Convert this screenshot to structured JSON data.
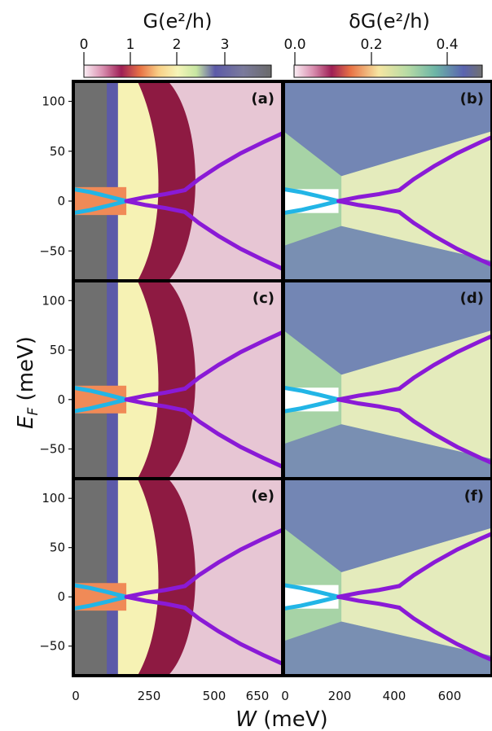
{
  "chart_data": {
    "type": "heatmap",
    "colorbars": [
      {
        "title": "G(e²/h)",
        "ticks": [
          "0",
          "1",
          "2",
          "3"
        ],
        "range": [
          0,
          3.6
        ]
      },
      {
        "title": "δG(e²/h)",
        "ticks": [
          "0.0",
          "0.2",
          "0.4"
        ],
        "range": [
          0.0,
          0.5
        ]
      }
    ],
    "ylabel": "E",
    "ylabel_sub": "F",
    "ylabel_unit": " (meV)",
    "xlabel": "W",
    "xlabel_unit": " (meV)",
    "ylim": [
      -80,
      120
    ],
    "yticks": [
      "100",
      "50",
      "0",
      "−50"
    ],
    "left_xlim": [
      0,
      750
    ],
    "left_xticks": [
      "0",
      "250",
      "500",
      "650"
    ],
    "right_xlim": [
      0,
      720
    ],
    "right_xticks": [
      "0",
      "200",
      "400",
      "600"
    ],
    "panels": [
      {
        "label": "(a)",
        "quantity": "G",
        "row": 0,
        "col": 0
      },
      {
        "label": "(b)",
        "quantity": "δG",
        "row": 0,
        "col": 1
      },
      {
        "label": "(c)",
        "quantity": "G",
        "row": 1,
        "col": 0
      },
      {
        "label": "(d)",
        "quantity": "δG",
        "row": 1,
        "col": 1
      },
      {
        "label": "(e)",
        "quantity": "G",
        "row": 2,
        "col": 0
      },
      {
        "label": "(f)",
        "quantity": "δG",
        "row": 2,
        "col": 1
      }
    ],
    "band_curves": {
      "cyan_color": "#22b5e6",
      "purple_color": "#8a1ad6",
      "cyan_x": [
        0,
        60,
        120,
        190
      ],
      "cyan_y": [
        12,
        9,
        5,
        0
      ],
      "purple_inner_x": [
        190,
        260,
        330,
        400
      ],
      "purple_inner_y": [
        0,
        4,
        7,
        11
      ],
      "purple_outer_x": [
        400,
        450,
        520,
        600,
        680,
        750
      ],
      "purple_outer_y": [
        11,
        22,
        35,
        48,
        59,
        68
      ]
    },
    "colors": {
      "grey_plateau": "#6f6f6f",
      "blue_plateau": "#5c5aa8",
      "yellow_plateau": "#f6f2b4",
      "maroon_plateau": "#8e1a42",
      "pink_plateau": "#e7c6d4",
      "orange_gap": "#f08a57"
    }
  }
}
